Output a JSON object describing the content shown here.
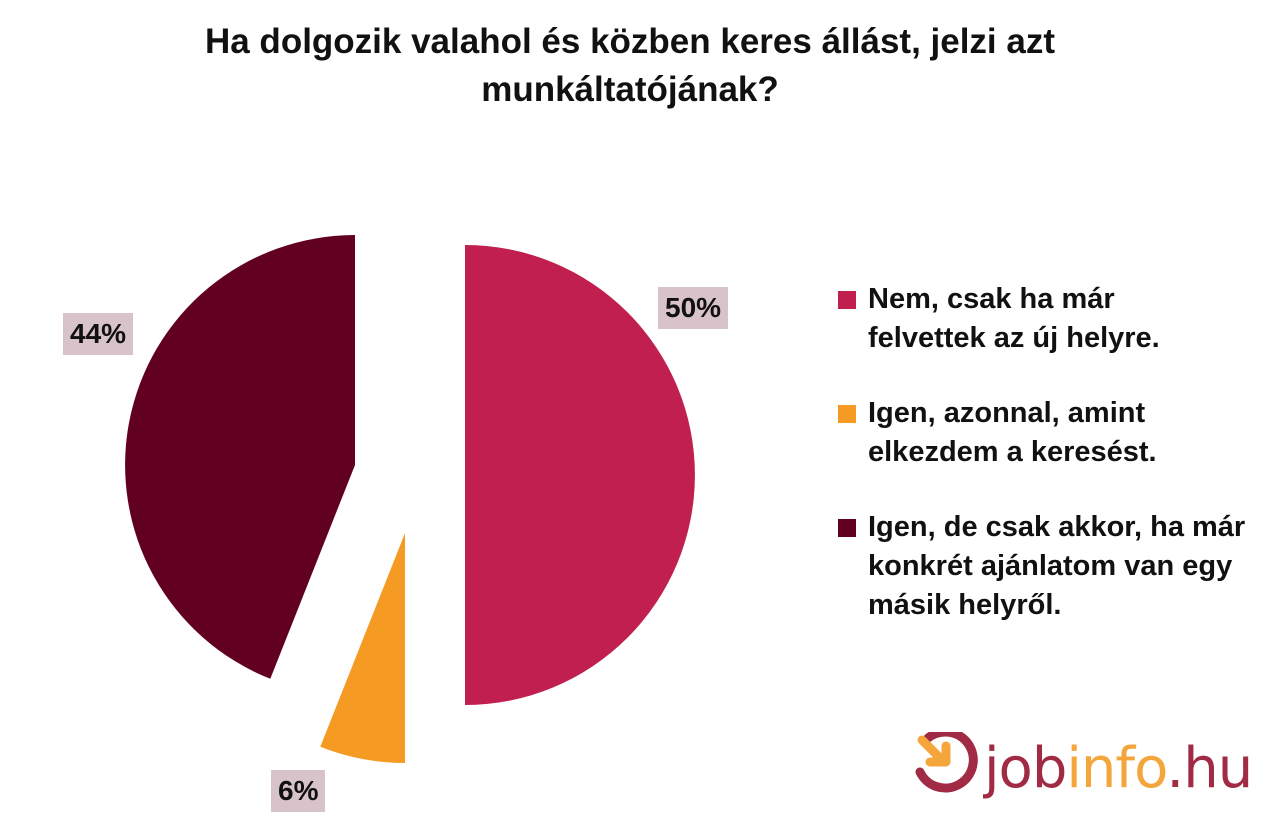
{
  "chart_data": {
    "type": "pie",
    "title_lines": [
      "Ha dolgozik valahol és közben keres állást, jelzi azt",
      "munkáltatójának?"
    ],
    "slices": [
      {
        "label_lines": [
          "Nem, csak ha már",
          "felvettek az új helyre."
        ],
        "value": 50,
        "value_label": "50%",
        "color": "#c01f4f"
      },
      {
        "label_lines": [
          "Igen, azonnal, amint",
          "elkezdem a keresést."
        ],
        "value": 6,
        "value_label": "6%",
        "color": "#f59a23"
      },
      {
        "label_lines": [
          "Igen, de csak akkor, ha már",
          "konkrét ajánlatom van egy",
          "másik helyről."
        ],
        "value": 44,
        "value_label": "44%",
        "color": "#620021"
      }
    ],
    "legend_position": "right",
    "data_label_background": "#d9c3ca"
  },
  "logo": {
    "text_parts": [
      "job",
      "info",
      ".hu"
    ],
    "colors": {
      "primary": "#a12a45",
      "accent": "#f4a53b"
    }
  }
}
